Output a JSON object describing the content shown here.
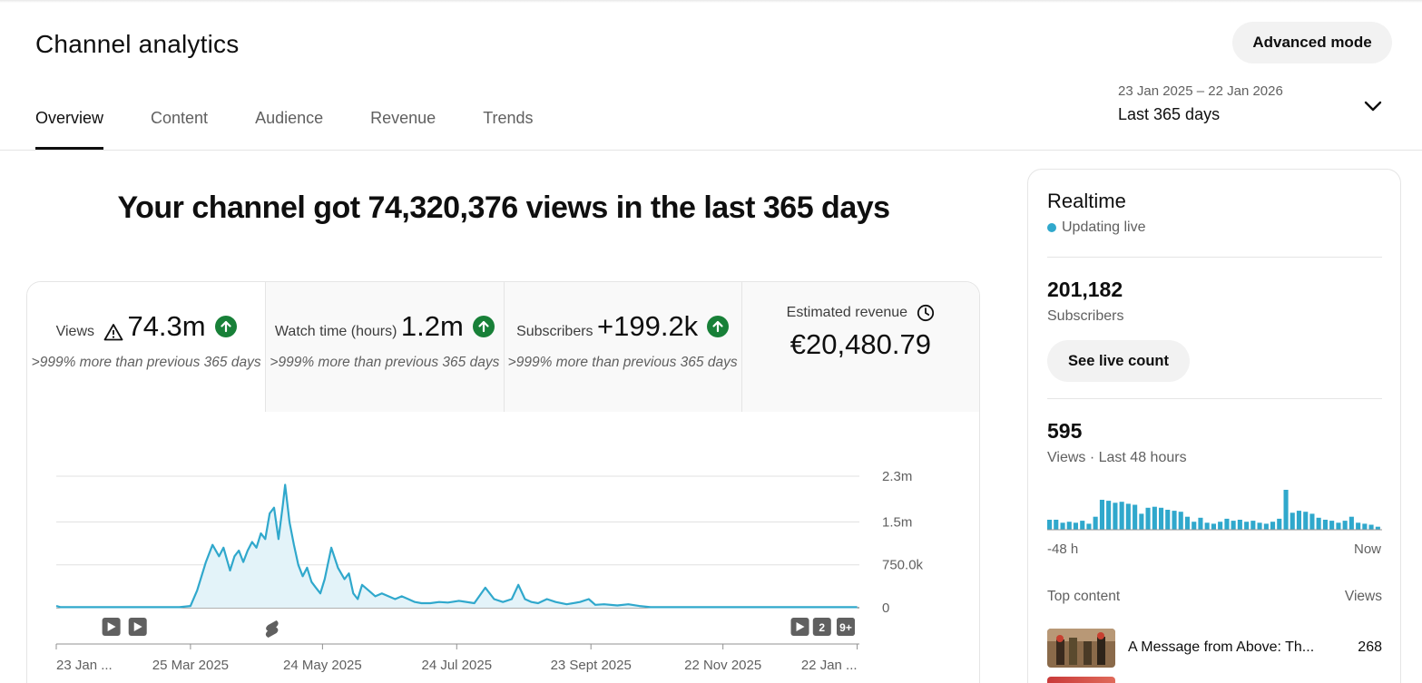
{
  "header": {
    "title": "Channel analytics",
    "advanced_mode_label": "Advanced mode"
  },
  "tabs": [
    {
      "label": "Overview",
      "active": true
    },
    {
      "label": "Content",
      "active": false
    },
    {
      "label": "Audience",
      "active": false
    },
    {
      "label": "Revenue",
      "active": false
    },
    {
      "label": "Trends",
      "active": false
    }
  ],
  "date_range": {
    "dates": "23 Jan 2025 – 22 Jan 2026",
    "selected": "Last 365 days"
  },
  "headline": "Your channel got 74,320,376 views in the last 365 days",
  "metrics": [
    {
      "label": "Views",
      "value": "74.3m",
      "note": ">999% more than previous 365 days",
      "icon": "warning-icon",
      "trend": "up"
    },
    {
      "label": "Watch time (hours)",
      "value": "1.2m",
      "note": ">999% more than previous 365 days",
      "icon": "",
      "trend": "up"
    },
    {
      "label": "Subscribers",
      "value": "+199.2k",
      "note": ">999% more than previous 365 days",
      "icon": "",
      "trend": "up"
    },
    {
      "label": "Estimated revenue",
      "value": "€20,480.79",
      "note": "",
      "icon": "clock-icon",
      "trend": ""
    }
  ],
  "colors": {
    "accent": "#30a8cc",
    "area_fill": "#e3f3f9",
    "trend_up": "#188038",
    "marker": "#606060"
  },
  "chart_data": {
    "type": "area",
    "x_tick_labels": [
      "23 Jan ...",
      "25 Mar 2025",
      "24 May 2025",
      "24 Jul 2025",
      "23 Sept 2025",
      "22 Nov 2025",
      "22 Jan ..."
    ],
    "y_tick_labels": [
      "0",
      "750.0k",
      "1.5m",
      "2.3m"
    ],
    "ylim": [
      0,
      2300000
    ],
    "grid": true,
    "x_start_date": "2025-01-23",
    "series": [
      {
        "x": [
          "2025-01-23",
          "2025-01-25",
          "2025-02-10",
          "2025-03-01",
          "2025-03-20",
          "2025-03-25",
          "2025-03-28",
          "2025-04-01",
          "2025-04-04",
          "2025-04-07",
          "2025-04-09",
          "2025-04-12",
          "2025-04-14",
          "2025-04-16",
          "2025-04-18",
          "2025-04-20",
          "2025-04-22",
          "2025-04-24",
          "2025-04-26",
          "2025-04-28",
          "2025-04-30",
          "2025-05-02",
          "2025-05-04",
          "2025-05-06",
          "2025-05-07",
          "2025-05-09",
          "2025-05-11",
          "2025-05-13",
          "2025-05-15",
          "2025-05-17",
          "2025-05-19",
          "2025-05-21",
          "2025-05-23",
          "2025-05-25",
          "2025-05-28",
          "2025-05-31",
          "2025-06-03",
          "2025-06-05",
          "2025-06-07",
          "2025-06-09",
          "2025-06-11",
          "2025-06-14",
          "2025-06-17",
          "2025-06-20",
          "2025-06-23",
          "2025-06-26",
          "2025-06-29",
          "2025-07-02",
          "2025-07-05",
          "2025-07-08",
          "2025-07-12",
          "2025-07-16",
          "2025-07-20",
          "2025-07-25",
          "2025-08-01",
          "2025-08-06",
          "2025-08-10",
          "2025-08-14",
          "2025-08-18",
          "2025-08-21",
          "2025-08-24",
          "2025-08-27",
          "2025-08-30",
          "2025-09-03",
          "2025-09-07",
          "2025-09-12",
          "2025-09-18",
          "2025-09-22",
          "2025-09-25",
          "2025-09-29",
          "2025-10-05",
          "2025-10-10",
          "2025-10-15",
          "2025-10-20",
          "2025-11-01",
          "2025-11-20",
          "2025-12-10",
          "2026-01-01",
          "2026-01-22"
        ],
        "y": [
          30000,
          10000,
          10000,
          10000,
          10000,
          30000,
          300000,
          800000,
          1100000,
          900000,
          1050000,
          650000,
          900000,
          1000000,
          800000,
          1000000,
          1150000,
          1050000,
          1300000,
          1200000,
          1650000,
          1750000,
          1200000,
          1800000,
          2150000,
          1500000,
          1100000,
          750000,
          550000,
          700000,
          450000,
          350000,
          250000,
          500000,
          1050000,
          700000,
          500000,
          600000,
          250000,
          150000,
          400000,
          300000,
          200000,
          250000,
          200000,
          150000,
          200000,
          150000,
          100000,
          80000,
          80000,
          100000,
          90000,
          120000,
          80000,
          350000,
          150000,
          100000,
          150000,
          400000,
          150000,
          100000,
          80000,
          150000,
          100000,
          60000,
          100000,
          150000,
          50000,
          60000,
          40000,
          60000,
          30000,
          10000,
          10000,
          10000,
          10000,
          10000,
          10000
        ]
      }
    ],
    "markers": [
      {
        "date": "2025-02-17",
        "label": "",
        "icon": "video-icon"
      },
      {
        "date": "2025-03-01",
        "label": "",
        "icon": "video-icon"
      },
      {
        "date": "2025-05-01",
        "label": "",
        "icon": "shorts-icon"
      },
      {
        "date": "2025-12-27",
        "label": "",
        "icon": "video-icon"
      },
      {
        "date": "2026-01-06",
        "label": "2",
        "icon": ""
      },
      {
        "date": "2026-01-19",
        "label": "9+",
        "icon": ""
      },
      {
        "date": "2026-02-07",
        "label": "9+",
        "icon": ""
      }
    ]
  },
  "realtime": {
    "title": "Realtime",
    "status": "Updating live",
    "subscribers_value": "201,182",
    "subscribers_label": "Subscribers",
    "live_count_button": "See live count",
    "views_value": "595",
    "views_label": "Views · Last 48 hours",
    "axis_start": "-48 h",
    "axis_end": "Now",
    "hourly_views": [
      10,
      10,
      7,
      8,
      7,
      9,
      6,
      13,
      30,
      29,
      27,
      28,
      26,
      25,
      16,
      22,
      23,
      22,
      20,
      19,
      18,
      13,
      8,
      12,
      7,
      6,
      8,
      11,
      9,
      10,
      8,
      9,
      7,
      6,
      8,
      11,
      40,
      17,
      19,
      18,
      16,
      12,
      10,
      9,
      7,
      9,
      13,
      7,
      6,
      5,
      3
    ],
    "top_content_header": "Top content",
    "top_content_views_header": "Views",
    "top_content": [
      {
        "title": "A Message from Above: Th...",
        "views": "268"
      }
    ]
  }
}
